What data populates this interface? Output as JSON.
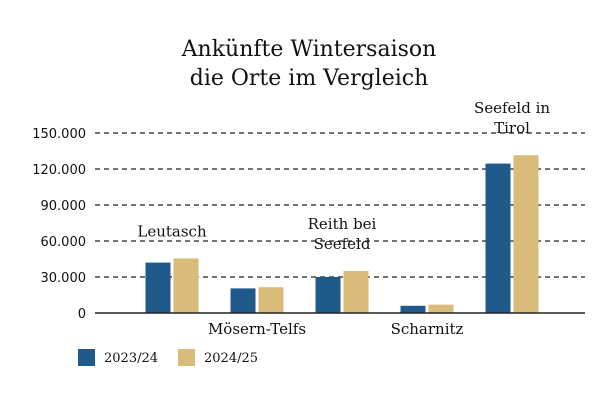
{
  "chart_data": {
    "type": "bar",
    "title": [
      "Ankünfte Wintersaison",
      "die Orte im Vergleich"
    ],
    "categories": [
      "Leutasch",
      "Mösern-Telfs",
      "Reith bei Seefeld",
      "Scharnitz",
      "Seefeld in Tirol"
    ],
    "category_label_lines": [
      [
        "Leutasch"
      ],
      [
        "Mösern-Telfs"
      ],
      [
        "Reith bei",
        "Seefeld"
      ],
      [
        "Scharnitz"
      ],
      [
        "Seefeld in",
        "Tirol"
      ]
    ],
    "series": [
      {
        "name": "2023/24",
        "color": "#1f5a8a",
        "values": [
          42000,
          20500,
          30000,
          6000,
          124500
        ]
      },
      {
        "name": "2024/25",
        "color": "#d9bb7a",
        "values": [
          45500,
          21500,
          35000,
          7000,
          131500
        ]
      }
    ],
    "ylim": [
      0,
      150000
    ],
    "yticks": [
      0,
      30000,
      60000,
      90000,
      120000,
      150000
    ],
    "ytick_labels": [
      "0",
      "30.000",
      "60.000",
      "90.000",
      "120.000",
      "150.000"
    ],
    "xlabel": "",
    "ylabel": "",
    "grid": true,
    "legend": "bottom-left"
  }
}
